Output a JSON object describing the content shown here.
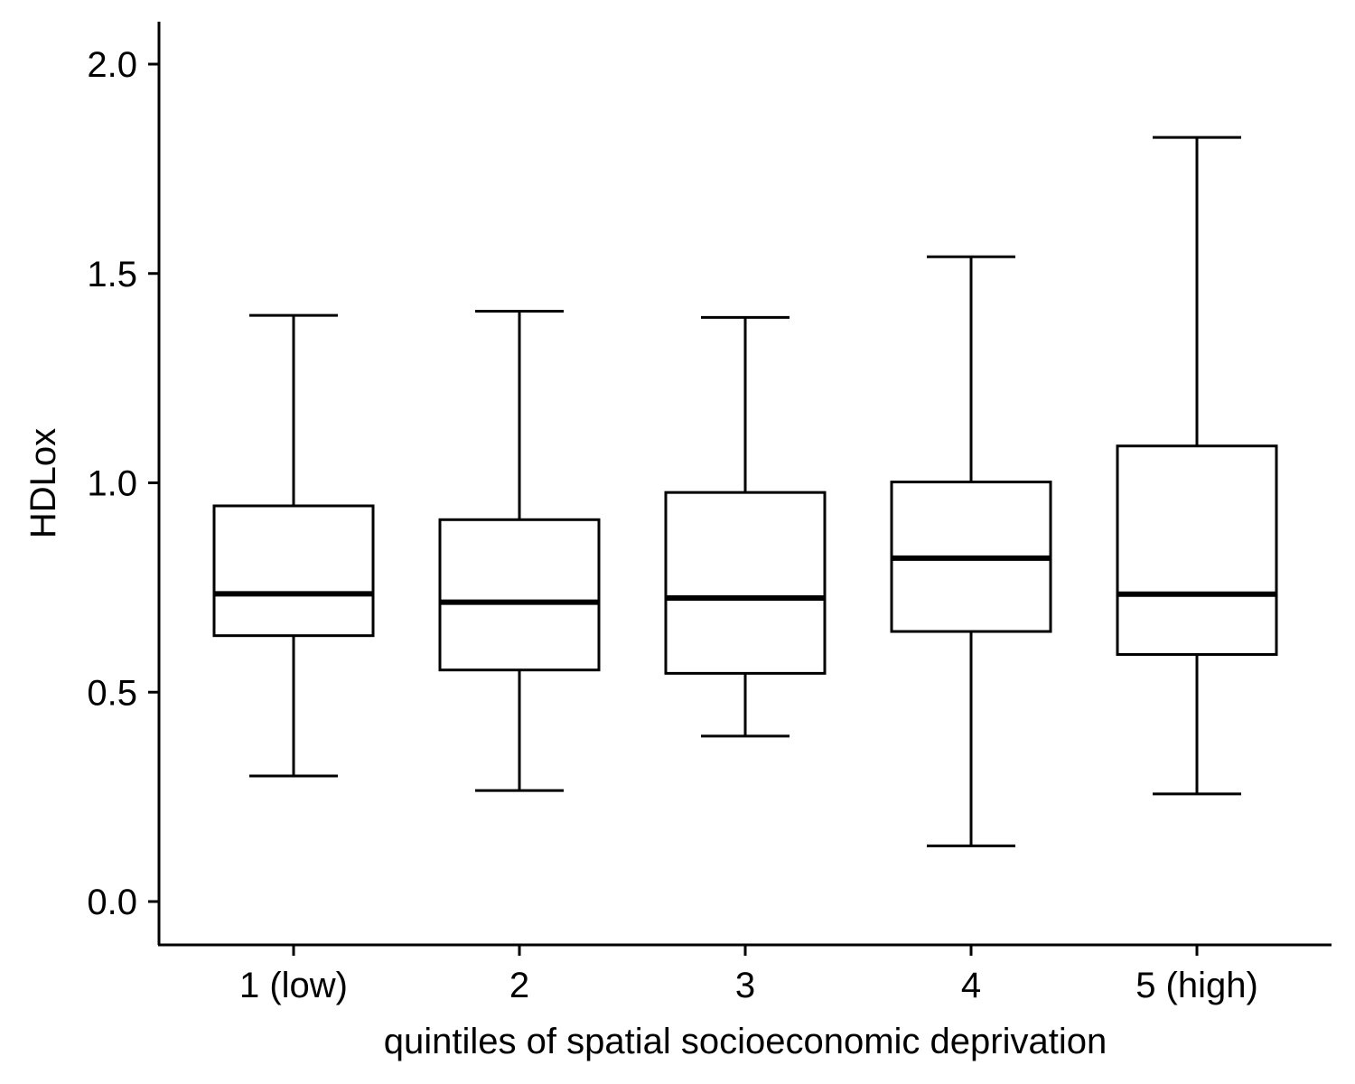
{
  "chart_data": {
    "type": "boxplot",
    "title": "",
    "xlabel": "quintiles of spatial socioeconomic deprivation",
    "ylabel": "HDLox",
    "ylim": [
      -0.1,
      2.1
    ],
    "yticks": [
      "0.0",
      "0.5",
      "1.0",
      "1.5",
      "2.0"
    ],
    "ytick_values": [
      0.0,
      0.5,
      1.0,
      1.5,
      2.0
    ],
    "categories": [
      "1 (low)",
      "2",
      "3",
      "4",
      "5 (high)"
    ],
    "grid": false,
    "legend": "none",
    "boxes": [
      {
        "category": "1 (low)",
        "whisker_low": 0.3,
        "q1": 0.635,
        "median": 0.735,
        "q3": 0.945,
        "whisker_high": 1.4
      },
      {
        "category": "2",
        "whisker_low": 0.265,
        "q1": 0.553,
        "median": 0.715,
        "q3": 0.912,
        "whisker_high": 1.41
      },
      {
        "category": "3",
        "whisker_low": 0.395,
        "q1": 0.545,
        "median": 0.725,
        "q3": 0.977,
        "whisker_high": 1.395
      },
      {
        "category": "4",
        "whisker_low": 0.133,
        "q1": 0.645,
        "median": 0.82,
        "q3": 1.002,
        "whisker_high": 1.54
      },
      {
        "category": "5 (high)",
        "whisker_low": 0.257,
        "q1": 0.59,
        "median": 0.734,
        "q3": 1.088,
        "whisker_high": 1.825
      }
    ],
    "colors": {
      "line": "#000000",
      "fill": "#ffffff"
    }
  }
}
